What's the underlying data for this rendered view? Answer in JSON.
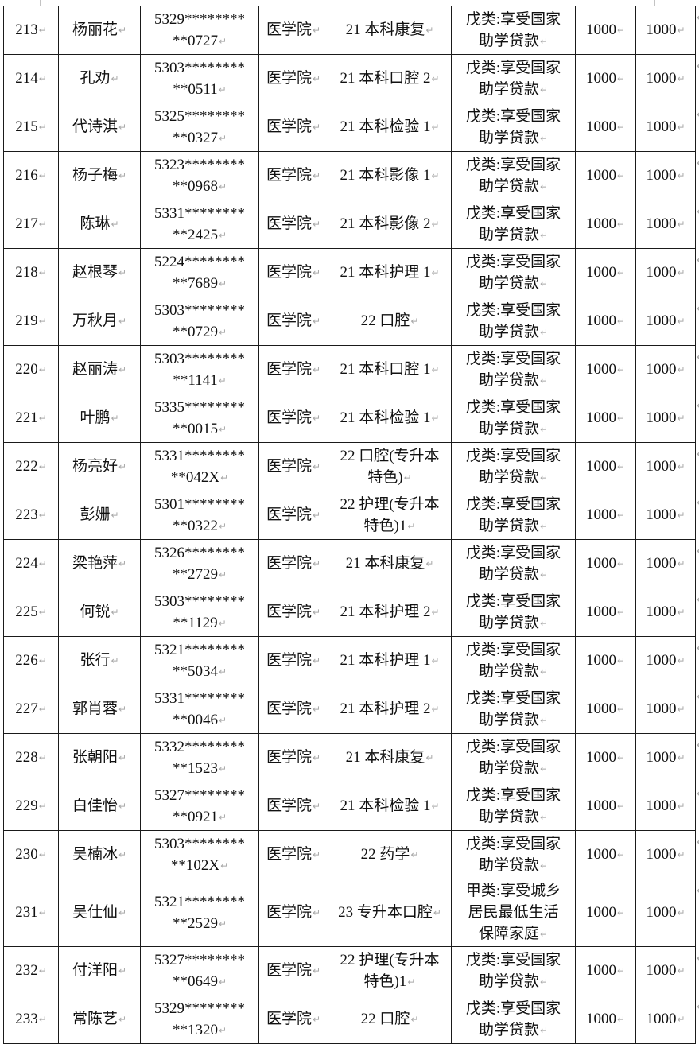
{
  "page": {
    "background_color": "#ffffff",
    "border_color": "#1a1a1a",
    "text_color": "#111111",
    "mark_color": "#a9a9a9",
    "cell_end_mark": "↵"
  },
  "table": {
    "columns": [
      "row_no",
      "name",
      "id_masked",
      "college",
      "class",
      "category",
      "amount1",
      "amount2"
    ],
    "rows": [
      {
        "no": "213",
        "name": "杨丽花",
        "id1": "5329********",
        "id2": "**0727",
        "college": "医学院",
        "cls": [
          "21 本科康复"
        ],
        "cat": [
          "戊类:享受国家",
          "助学贷款"
        ],
        "a1": "1000",
        "a2": "1000"
      },
      {
        "no": "214",
        "name": "孔劝",
        "id1": "5303********",
        "id2": "**0511",
        "college": "医学院",
        "cls": [
          "21 本科口腔 2"
        ],
        "cat": [
          "戊类:享受国家",
          "助学贷款"
        ],
        "a1": "1000",
        "a2": "1000"
      },
      {
        "no": "215",
        "name": "代诗淇",
        "id1": "5325********",
        "id2": "**0327",
        "college": "医学院",
        "cls": [
          "21 本科检验 1"
        ],
        "cat": [
          "戊类:享受国家",
          "助学贷款"
        ],
        "a1": "1000",
        "a2": "1000"
      },
      {
        "no": "216",
        "name": "杨子梅",
        "id1": "5323********",
        "id2": "**0968",
        "college": "医学院",
        "cls": [
          "21 本科影像 1"
        ],
        "cat": [
          "戊类:享受国家",
          "助学贷款"
        ],
        "a1": "1000",
        "a2": "1000"
      },
      {
        "no": "217",
        "name": "陈琳",
        "id1": "5331********",
        "id2": "**2425",
        "college": "医学院",
        "cls": [
          "21 本科影像 2"
        ],
        "cat": [
          "戊类:享受国家",
          "助学贷款"
        ],
        "a1": "1000",
        "a2": "1000"
      },
      {
        "no": "218",
        "name": "赵根琴",
        "id1": "5224********",
        "id2": "**7689",
        "college": "医学院",
        "cls": [
          "21 本科护理 1"
        ],
        "cat": [
          "戊类:享受国家",
          "助学贷款"
        ],
        "a1": "1000",
        "a2": "1000"
      },
      {
        "no": "219",
        "name": "万秋月",
        "id1": "5303********",
        "id2": "**0729",
        "college": "医学院",
        "cls": [
          "22 口腔"
        ],
        "cat": [
          "戊类:享受国家",
          "助学贷款"
        ],
        "a1": "1000",
        "a2": "1000"
      },
      {
        "no": "220",
        "name": "赵丽涛",
        "id1": "5303********",
        "id2": "**1141",
        "college": "医学院",
        "cls": [
          "21 本科口腔 1"
        ],
        "cat": [
          "戊类:享受国家",
          "助学贷款"
        ],
        "a1": "1000",
        "a2": "1000"
      },
      {
        "no": "221",
        "name": "叶鹏",
        "id1": "5335********",
        "id2": "**0015",
        "college": "医学院",
        "cls": [
          "21 本科检验 1"
        ],
        "cat": [
          "戊类:享受国家",
          "助学贷款"
        ],
        "a1": "1000",
        "a2": "1000"
      },
      {
        "no": "222",
        "name": "杨亮好",
        "id1": "5331********",
        "id2": "**042X",
        "college": "医学院",
        "cls": [
          "22 口腔(专升本",
          "特色)"
        ],
        "cat": [
          "戊类:享受国家",
          "助学贷款"
        ],
        "a1": "1000",
        "a2": "1000"
      },
      {
        "no": "223",
        "name": "彭姗",
        "id1": "5301********",
        "id2": "**0322",
        "college": "医学院",
        "cls": [
          "22 护理(专升本",
          "特色)1"
        ],
        "cat": [
          "戊类:享受国家",
          "助学贷款"
        ],
        "a1": "1000",
        "a2": "1000"
      },
      {
        "no": "224",
        "name": "梁艳萍",
        "id1": "5326********",
        "id2": "**2729",
        "college": "医学院",
        "cls": [
          "21 本科康复"
        ],
        "cat": [
          "戊类:享受国家",
          "助学贷款"
        ],
        "a1": "1000",
        "a2": "1000"
      },
      {
        "no": "225",
        "name": "何锐",
        "id1": "5303********",
        "id2": "**1129",
        "college": "医学院",
        "cls": [
          "21 本科护理 2"
        ],
        "cat": [
          "戊类:享受国家",
          "助学贷款"
        ],
        "a1": "1000",
        "a2": "1000"
      },
      {
        "no": "226",
        "name": "张行",
        "id1": "5321********",
        "id2": "**5034",
        "college": "医学院",
        "cls": [
          "21 本科护理 1"
        ],
        "cat": [
          "戊类:享受国家",
          "助学贷款"
        ],
        "a1": "1000",
        "a2": "1000"
      },
      {
        "no": "227",
        "name": "郭肖蓉",
        "id1": "5331********",
        "id2": "**0046",
        "college": "医学院",
        "cls": [
          "21 本科护理 2"
        ],
        "cat": [
          "戊类:享受国家",
          "助学贷款"
        ],
        "a1": "1000",
        "a2": "1000"
      },
      {
        "no": "228",
        "name": "张朝阳",
        "id1": "5332********",
        "id2": "**1523",
        "college": "医学院",
        "cls": [
          "21 本科康复"
        ],
        "cat": [
          "戊类:享受国家",
          "助学贷款"
        ],
        "a1": "1000",
        "a2": "1000"
      },
      {
        "no": "229",
        "name": "白佳怡",
        "id1": "5327********",
        "id2": "**0921",
        "college": "医学院",
        "cls": [
          "21 本科检验 1"
        ],
        "cat": [
          "戊类:享受国家",
          "助学贷款"
        ],
        "a1": "1000",
        "a2": "1000"
      },
      {
        "no": "230",
        "name": "吴楠冰",
        "id1": "5303********",
        "id2": "**102X",
        "college": "医学院",
        "cls": [
          "22 药学"
        ],
        "cat": [
          "戊类:享受国家",
          "助学贷款"
        ],
        "a1": "1000",
        "a2": "1000"
      },
      {
        "no": "231",
        "name": "吴仕仙",
        "id1": "5321********",
        "id2": "**2529",
        "college": "医学院",
        "cls": [
          "23 专升本口腔"
        ],
        "cat": [
          "甲类:享受城乡",
          "居民最低生活",
          "保障家庭"
        ],
        "a1": "1000",
        "a2": "1000"
      },
      {
        "no": "232",
        "name": "付洋阳",
        "id1": "5327********",
        "id2": "**0649",
        "college": "医学院",
        "cls": [
          "22 护理(专升本",
          "特色)1"
        ],
        "cat": [
          "戊类:享受国家",
          "助学贷款"
        ],
        "a1": "1000",
        "a2": "1000"
      },
      {
        "no": "233",
        "name": "常陈艺",
        "id1": "5329********",
        "id2": "**1320",
        "college": "医学院",
        "cls": [
          "22 口腔"
        ],
        "cat": [
          "戊类:享受国家",
          "助学贷款"
        ],
        "a1": "1000",
        "a2": "1000"
      }
    ]
  }
}
